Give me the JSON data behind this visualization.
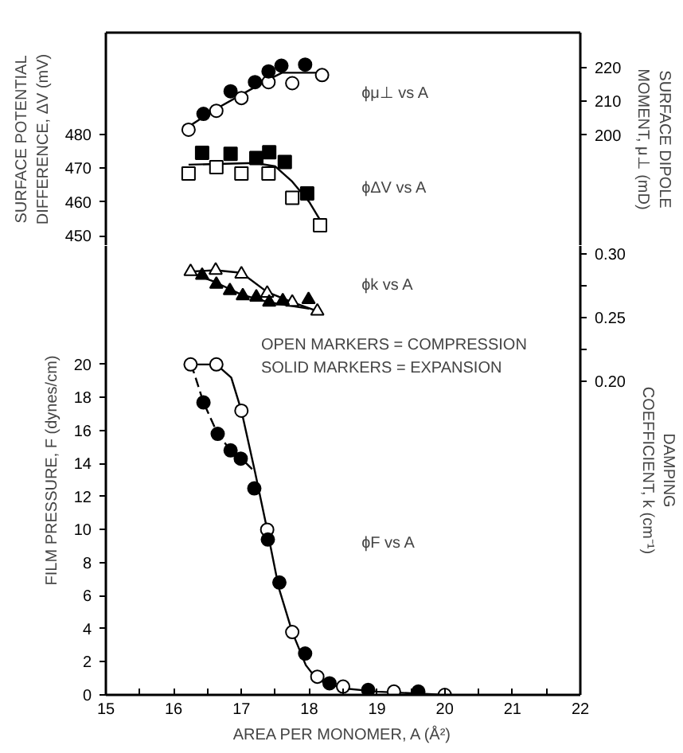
{
  "chart_data": [
    {
      "type": "scatter",
      "ylabel": "SURFACE POTENTIAL\nDIFFERENCE, ΔV (mV)",
      "y2label": "SURFACE DIPOLE\nMOMENT, μ⊥ (mD)",
      "xlim": [
        15,
        22
      ],
      "tick_labels": "y",
      "ylim": [
        447,
        510
      ],
      "yticks": [
        450,
        460,
        470,
        480
      ],
      "y2lim": [
        167.1,
        230.4
      ],
      "y2ticks": [
        200,
        210,
        220
      ],
      "grid": false,
      "annotations": [
        "ɸμ⊥ vs A",
        "ɸΔV vs A"
      ],
      "series": [
        {
          "type": "line",
          "axis": "y2",
          "marker": "none",
          "line_style": "solid",
          "color": "#000000",
          "x": [
            16.22,
            16.6,
            17.0,
            17.4,
            17.6,
            18.19
          ],
          "values": [
            202.5,
            207.5,
            212,
            216.5,
            218.5,
            218.5
          ]
        },
        {
          "axis": "y2",
          "marker": "circle",
          "color": "#ffffff",
          "x": [
            16.22,
            16.63,
            17.0,
            17.4,
            17.75,
            18.19
          ],
          "values": [
            201.6,
            207.2,
            211.0,
            215.7,
            215.4,
            217.8
          ]
        },
        {
          "axis": "y2",
          "marker": "circle",
          "color": "#000000",
          "x": [
            16.44,
            16.84,
            17.2,
            17.4,
            17.59,
            17.94
          ],
          "values": [
            206.3,
            213.0,
            215.7,
            218.9,
            220.6,
            220.9
          ]
        },
        {
          "type": "line",
          "marker": "none",
          "line_style": "solid",
          "color": "#000000",
          "x": [
            16.22,
            17.2,
            17.5,
            17.75,
            18.0,
            18.15
          ],
          "values": [
            471,
            471.5,
            470.5,
            466,
            460,
            455
          ]
        },
        {
          "marker": "square",
          "color": "#ffffff",
          "x": [
            16.22,
            16.63,
            17.0,
            17.4,
            17.75,
            18.16
          ],
          "values": [
            468.4,
            470.3,
            468.4,
            468.4,
            461.2,
            453.1
          ]
        },
        {
          "marker": "square",
          "color": "#000000",
          "x": [
            16.42,
            16.84,
            17.22,
            17.41,
            17.64,
            17.97
          ],
          "values": [
            474.5,
            474.2,
            473.0,
            474.7,
            471.8,
            462.5
          ]
        }
      ]
    },
    {
      "type": "scatter",
      "xlabel": "AREA PER MONOMER, A (Å²)",
      "ylabel": "FILM PRESSURE, F (dynes/cm)",
      "y2label": "DAMPING\nCOEFFICIENT, k (cm⁻¹)",
      "xlim": [
        15,
        22
      ],
      "xticks": [
        15,
        {
          "value": 15.5,
          "label": null
        },
        16,
        {
          "value": 16.5,
          "label": null
        },
        17,
        {
          "value": 17.5,
          "label": null
        },
        18,
        {
          "value": 18.5,
          "label": null
        },
        19,
        {
          "value": 19.5,
          "label": null
        },
        20,
        {
          "value": 20.5,
          "label": null
        },
        21,
        {
          "value": 21.5,
          "label": null
        },
        22
      ],
      "ylim": [
        0,
        27.17
      ],
      "yticks": [
        0,
        2,
        4,
        6,
        8,
        10,
        12,
        14,
        16,
        18,
        20
      ],
      "y2lim": [
        -0.045,
        0.306
      ],
      "y2ticks": [
        {
          "value": 0.2,
          "label": "0.20"
        },
        {
          "value": 0.225,
          "label": null
        },
        {
          "value": 0.25,
          "label": "0.25"
        },
        {
          "value": 0.275,
          "label": null
        },
        {
          "value": 0.3,
          "label": "0.30"
        }
      ],
      "grid": false,
      "annotations": [
        "ɸk vs A",
        "OPEN MARKERS = COMPRESSION",
        "SOLID MARKERS = EXPANSION",
        "ɸF vs A"
      ],
      "series": [
        {
          "type": "line",
          "axis": "y2",
          "marker": "none",
          "line_style": "solid",
          "color": "#000000",
          "x": [
            16.25,
            16.62,
            17.0,
            17.38,
            17.75,
            18.12
          ],
          "values": [
            0.286,
            0.287,
            0.285,
            0.27,
            0.262,
            0.255
          ]
        },
        {
          "type": "line",
          "axis": "y2",
          "marker": "none",
          "line_style": "solid",
          "color": "#000000",
          "x": [
            16.25,
            16.6,
            17.0,
            17.4,
            18.0
          ],
          "values": [
            0.285,
            0.278,
            0.268,
            0.262,
            0.257
          ]
        },
        {
          "axis": "y2",
          "marker": "triangle",
          "color": "#ffffff",
          "x": [
            16.25,
            16.62,
            17.0,
            17.38,
            17.75,
            18.12
          ],
          "values": [
            0.286,
            0.287,
            0.284,
            0.269,
            0.262,
            0.255
          ]
        },
        {
          "axis": "y2",
          "marker": "triangle",
          "color": "#000000",
          "x": [
            16.42,
            16.63,
            16.83,
            17.02,
            17.22,
            17.41,
            17.61,
            17.99
          ],
          "values": [
            0.283,
            0.276,
            0.271,
            0.267,
            0.266,
            0.262,
            0.263,
            0.264
          ]
        },
        {
          "type": "line",
          "marker": "none",
          "line_style": "solid",
          "color": "#000000",
          "x": [
            16.25,
            16.63,
            16.85,
            17.0,
            17.2,
            17.38,
            17.55,
            17.75,
            17.95,
            18.12,
            18.5,
            19.0,
            20.0
          ],
          "values": [
            20,
            20,
            19.2,
            17.2,
            13.5,
            10,
            6.5,
            3.8,
            1.8,
            0.9,
            0.4,
            0.2,
            0.0
          ]
        },
        {
          "type": "line",
          "marker": "none",
          "line_style": "dashed",
          "color": "#000000",
          "x": [
            16.25,
            16.3,
            16.44,
            16.65,
            16.84,
            17.0,
            17.2
          ],
          "values": [
            20,
            19.5,
            17.7,
            15.8,
            14.8,
            14.3,
            13.5
          ]
        },
        {
          "marker": "circle",
          "color": "#ffffff",
          "x": [
            16.25,
            16.63,
            17.0,
            17.38,
            17.75,
            18.12,
            18.5,
            19.25,
            20.0
          ],
          "values": [
            20,
            20,
            17.2,
            10,
            3.8,
            1.1,
            0.5,
            0.2,
            0.0
          ]
        },
        {
          "marker": "circle",
          "color": "#000000",
          "x": [
            16.44,
            16.65,
            16.84,
            16.99,
            17.19,
            17.39,
            17.56,
            17.94,
            18.3,
            18.87,
            19.61
          ],
          "values": [
            17.7,
            15.8,
            14.8,
            14.3,
            12.5,
            9.4,
            6.8,
            2.5,
            0.7,
            0.3,
            0.2
          ]
        }
      ]
    }
  ]
}
